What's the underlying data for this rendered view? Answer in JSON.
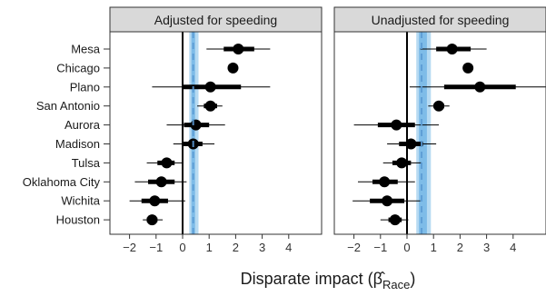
{
  "chart_data": {
    "type": "forest",
    "xlabel": "Disparate impact (β̂",
    "xlabel_subscript": "Race",
    "xlabel_close": ")",
    "categories": [
      "Mesa",
      "Chicago",
      "Plano",
      "San Antonio",
      "Aurora",
      "Madison",
      "Tulsa",
      "Oklahoma City",
      "Wichita",
      "Houston"
    ],
    "xticks": [
      -2,
      -1,
      0,
      1,
      2,
      3,
      4
    ],
    "tick_labels": [
      "−2",
      "−1",
      "0",
      "1",
      "2",
      "3",
      "4"
    ],
    "xlim": [
      -2.5,
      5.5
    ],
    "colors": {
      "point": "#000000",
      "band": "#a9d3f0",
      "band_inner": "#74b6e6",
      "reference": "#5b9bd5",
      "strip": "#d9d9d9"
    },
    "panels": [
      {
        "title": "Adjusted for speeding",
        "reference": 0.4,
        "band_outer": [
          0.25,
          0.6
        ],
        "band_inner": [
          0.33,
          0.47
        ],
        "rows": [
          {
            "point": 2.1,
            "outer": [
              0.9,
              3.3
            ],
            "inner": [
              1.55,
              2.7
            ]
          },
          {
            "point": 1.9,
            "outer": [
              1.9,
              1.9
            ],
            "inner": [
              1.9,
              1.9
            ]
          },
          {
            "point": 1.05,
            "outer": [
              -1.15,
              3.3
            ],
            "inner": [
              0.0,
              2.2
            ]
          },
          {
            "point": 1.05,
            "outer": [
              0.55,
              1.5
            ],
            "inner": [
              0.8,
              1.3
            ]
          },
          {
            "point": 0.5,
            "outer": [
              -0.6,
              1.6
            ],
            "inner": [
              0.05,
              1.0
            ]
          },
          {
            "point": 0.4,
            "outer": [
              -0.35,
              1.2
            ],
            "inner": [
              0.0,
              0.75
            ]
          },
          {
            "point": -0.6,
            "outer": [
              -1.35,
              0.0
            ],
            "inner": [
              -0.95,
              -0.3
            ]
          },
          {
            "point": -0.8,
            "outer": [
              -1.8,
              0.15
            ],
            "inner": [
              -1.3,
              -0.3
            ]
          },
          {
            "point": -1.05,
            "outer": [
              -2.0,
              0.1
            ],
            "inner": [
              -1.55,
              -0.55
            ]
          },
          {
            "point": -1.15,
            "outer": [
              -1.5,
              -0.75
            ],
            "inner": [
              -1.35,
              -0.95
            ]
          }
        ]
      },
      {
        "title": "Unadjusted for speeding",
        "reference": 0.55,
        "band_outer": [
          0.35,
          0.9
        ],
        "band_inner": [
          0.45,
          0.75
        ],
        "rows": [
          {
            "point": 1.7,
            "outer": [
              0.5,
              3.0
            ],
            "inner": [
              1.1,
              2.4
            ]
          },
          {
            "point": 2.3,
            "outer": [
              2.3,
              2.3
            ],
            "inner": [
              2.3,
              2.3
            ]
          },
          {
            "point": 2.75,
            "outer": [
              0.1,
              5.4
            ],
            "inner": [
              1.4,
              4.1
            ]
          },
          {
            "point": 1.2,
            "outer": [
              0.8,
              1.6
            ],
            "inner": [
              1.0,
              1.4
            ]
          },
          {
            "point": -0.4,
            "outer": [
              -2.0,
              1.2
            ],
            "inner": [
              -1.1,
              0.3
            ]
          },
          {
            "point": 0.15,
            "outer": [
              -0.75,
              1.1
            ],
            "inner": [
              -0.3,
              0.6
            ]
          },
          {
            "point": -0.2,
            "outer": [
              -0.9,
              0.55
            ],
            "inner": [
              -0.55,
              0.15
            ]
          },
          {
            "point": -0.85,
            "outer": [
              -1.85,
              0.3
            ],
            "inner": [
              -1.3,
              -0.35
            ]
          },
          {
            "point": -0.75,
            "outer": [
              -2.05,
              0.5
            ],
            "inner": [
              -1.4,
              -0.1
            ]
          },
          {
            "point": -0.45,
            "outer": [
              -1.0,
              0.05
            ],
            "inner": [
              -0.7,
              -0.2
            ]
          }
        ]
      }
    ]
  }
}
